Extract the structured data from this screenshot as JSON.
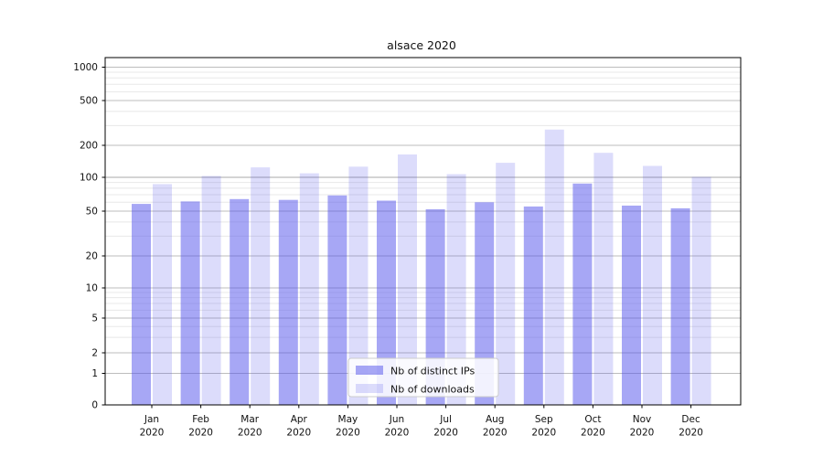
{
  "chart_data": {
    "type": "bar",
    "title": "alsace 2020",
    "categories": [
      "Jan 2020",
      "Feb 2020",
      "Mar 2020",
      "Apr 2020",
      "May 2020",
      "Jun 2020",
      "Jul 2020",
      "Aug 2020",
      "Sep 2020",
      "Oct 2020",
      "Nov 2020",
      "Dec 2020"
    ],
    "series": [
      {
        "name": "Nb of distinct IPs",
        "color": "#5050eb",
        "opacity": 0.5,
        "values": [
          58,
          61,
          64,
          63,
          69,
          62,
          52,
          60,
          55,
          88,
          56,
          53
        ]
      },
      {
        "name": "Nb of downloads",
        "color": "#5050eb",
        "opacity": 0.2,
        "values": [
          87,
          103,
          124,
          109,
          126,
          164,
          107,
          137,
          276,
          170,
          128,
          101
        ]
      }
    ],
    "yscale": "symlog",
    "yticks": [
      0,
      1,
      2,
      5,
      10,
      20,
      50,
      100,
      200,
      500,
      1000
    ],
    "minor_yticks": [
      3,
      4,
      6,
      7,
      8,
      9,
      30,
      40,
      60,
      70,
      80,
      90,
      300,
      400,
      600,
      700,
      800,
      900
    ],
    "ylim": [
      0,
      1200
    ],
    "xlabel": "",
    "ylabel": "",
    "grid": true,
    "legend": {
      "position": "lower-center",
      "entries": [
        "Nb of distinct IPs",
        "Nb of downloads"
      ]
    },
    "colors": {
      "bar_base": "#5050eb",
      "grid_major": "#bdbdbd",
      "grid_minor": "#e8e8e8",
      "spine": "#000000",
      "legend_border": "#cccccc"
    }
  }
}
